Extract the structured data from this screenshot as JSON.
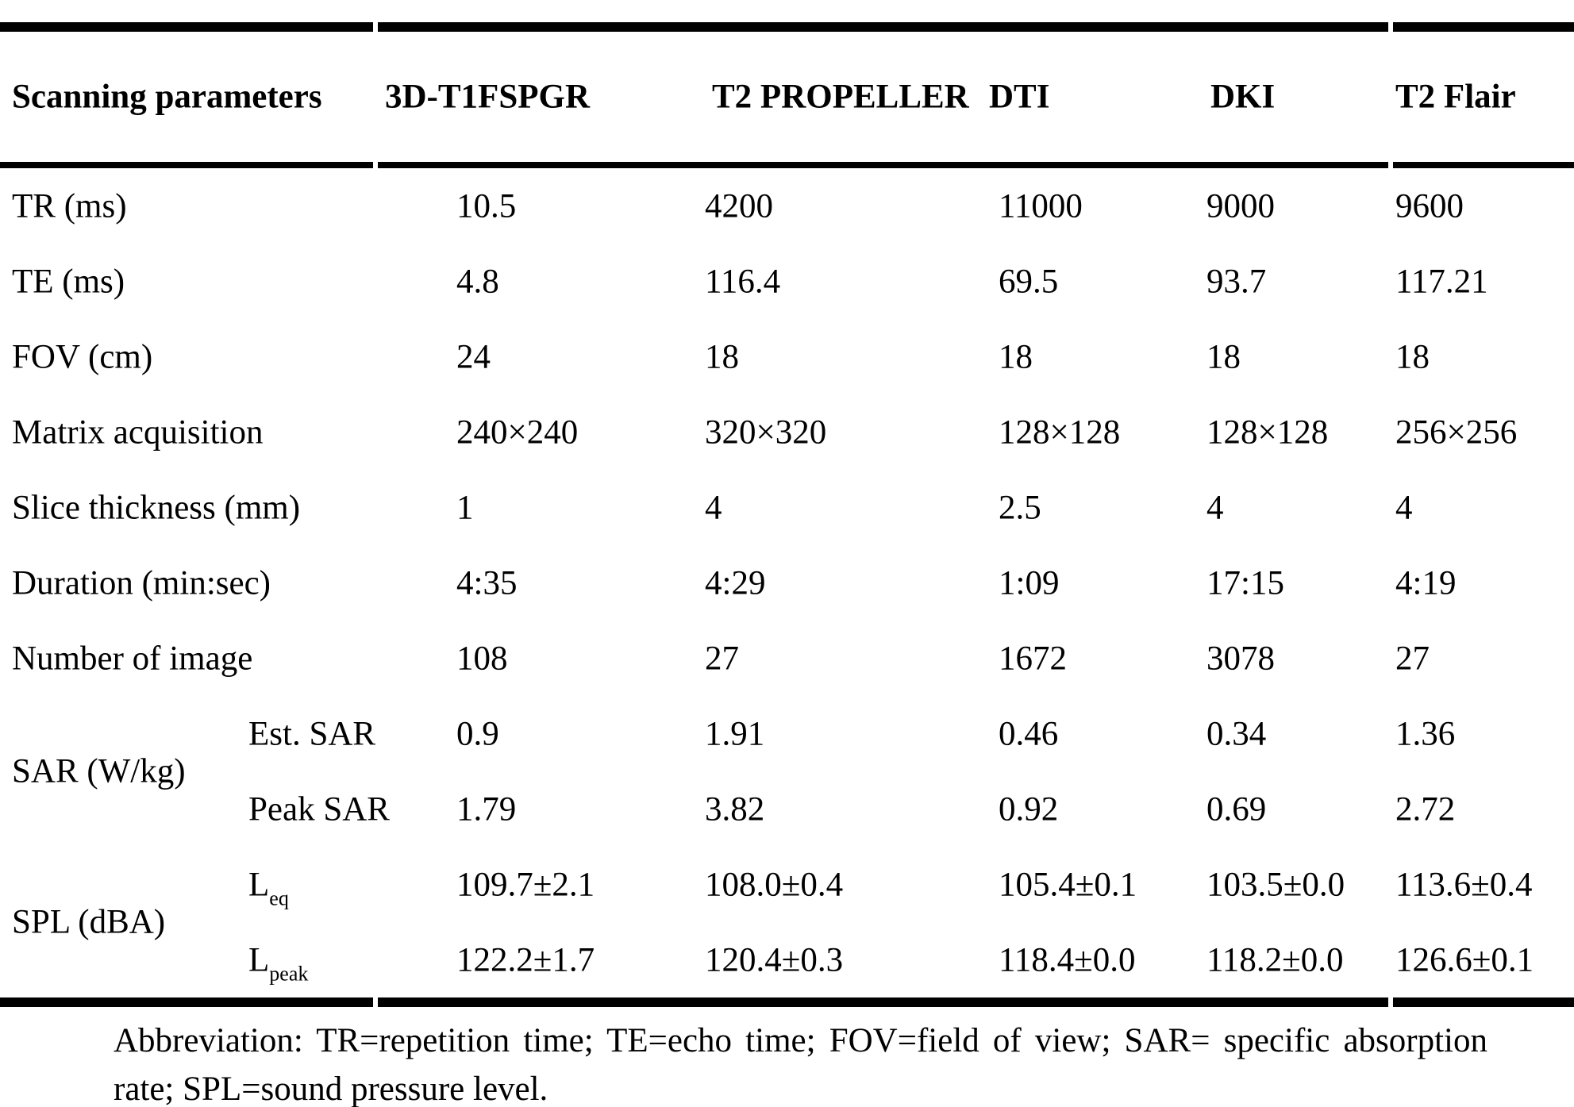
{
  "page": {
    "background": "#ffffff",
    "text_color": "#000000"
  },
  "table": {
    "header": {
      "param_col": "Scanning parameters",
      "sequences": [
        "3D-T1FSPGR",
        "T2 PROPELLER",
        "DTI",
        "DKI",
        "T2 Flair"
      ]
    },
    "rows": [
      {
        "label": "TR (ms)",
        "values": [
          "10.5",
          "4200",
          "11000",
          "9000",
          "9600"
        ]
      },
      {
        "label": "TE (ms)",
        "values": [
          "4.8",
          "116.4",
          "69.5",
          "93.7",
          "117.21"
        ]
      },
      {
        "label": "FOV (cm)",
        "values": [
          "24",
          "18",
          "18",
          "18",
          "18"
        ]
      },
      {
        "label": "Matrix acquisition",
        "values": [
          "240×240",
          "320×320",
          "128×128",
          "128×128",
          "256×256"
        ]
      },
      {
        "label": "Slice thickness (mm)",
        "values": [
          "1",
          "4",
          "2.5",
          "4",
          "4"
        ]
      },
      {
        "label": "Duration (min:sec)",
        "values": [
          "4:35",
          "4:29",
          "1:09",
          "17:15",
          "4:19"
        ]
      },
      {
        "label": "Number of image",
        "values": [
          "108",
          "27",
          "1672",
          "3078",
          "27"
        ]
      }
    ],
    "groups": [
      {
        "label": "SAR (W/kg)",
        "rows": [
          {
            "sublabel": "Est. SAR",
            "sub_sub": "",
            "values": [
              "0.9",
              "1.91",
              "0.46",
              "0.34",
              "1.36"
            ]
          },
          {
            "sublabel": "Peak SAR",
            "sub_sub": "",
            "values": [
              "1.79",
              "3.82",
              "0.92",
              "0.69",
              "2.72"
            ]
          }
        ]
      },
      {
        "label": "SPL (dBA)",
        "rows": [
          {
            "sublabel": "L",
            "sub_sub": "eq",
            "values": [
              "109.7±2.1",
              "108.0±0.4",
              "105.4±0.1",
              "103.5±0.0",
              "113.6±0.4"
            ]
          },
          {
            "sublabel": "L",
            "sub_sub": "peak",
            "values": [
              "122.2±1.7",
              "120.4±0.3",
              "118.4±0.0",
              "118.2±0.0",
              "126.6±0.1"
            ]
          }
        ]
      }
    ]
  },
  "footnote": {
    "line1": "Abbreviation: TR=repetition time; TE=echo time; FOV=field of view; SAR= specific absorption",
    "line2": "rate; SPL=sound pressure level."
  }
}
